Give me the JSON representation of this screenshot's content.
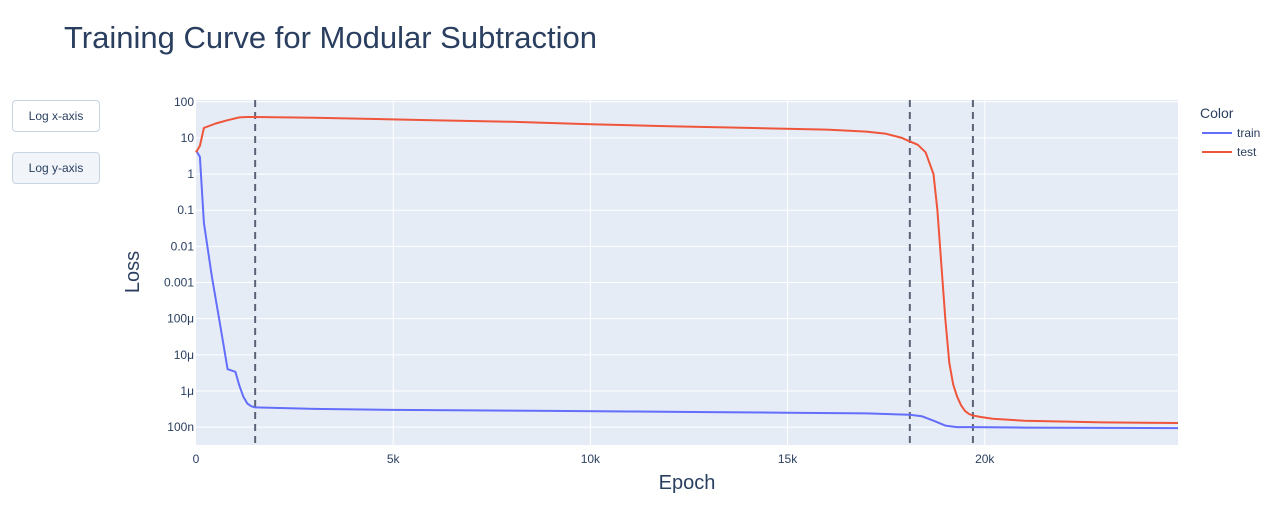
{
  "title": "Training Curve for Modular Subtraction",
  "buttons": {
    "log_x": "Log x-axis",
    "log_y": "Log y-axis"
  },
  "colors": {
    "plot_bg": "#e5ecf6",
    "grid": "#ffffff",
    "train": "#636efa",
    "test": "#ef553b",
    "vline": "#5b6377"
  },
  "chart_data": {
    "type": "line",
    "xlabel": "Epoch",
    "ylabel": "Loss",
    "xlim": [
      0,
      24900
    ],
    "ylim": [
      3.2e-08,
      112
    ],
    "yscale": "log",
    "grid": true,
    "x_ticks": [
      {
        "value": 0,
        "label": "0"
      },
      {
        "value": 5000,
        "label": "5k"
      },
      {
        "value": 10000,
        "label": "10k"
      },
      {
        "value": 15000,
        "label": "15k"
      },
      {
        "value": 20000,
        "label": "20k"
      }
    ],
    "y_ticks": [
      {
        "value": 100,
        "label": "100"
      },
      {
        "value": 10,
        "label": "10"
      },
      {
        "value": 1,
        "label": "1"
      },
      {
        "value": 0.1,
        "label": "0.1"
      },
      {
        "value": 0.01,
        "label": "0.01"
      },
      {
        "value": 0.001,
        "label": "0.001"
      },
      {
        "value": 0.0001,
        "label": "100μ"
      },
      {
        "value": 1e-05,
        "label": "10μ"
      },
      {
        "value": 1e-06,
        "label": "1μ"
      },
      {
        "value": 1e-07,
        "label": "100n"
      }
    ],
    "legend_title": "Color",
    "legend_position": "top-right",
    "vlines": [
      1500,
      18100,
      19700
    ],
    "series": [
      {
        "name": "train",
        "x": [
          0,
          100,
          200,
          400,
          600,
          800,
          1000,
          1100,
          1200,
          1300,
          1400,
          1500,
          3000,
          5000,
          7000,
          9000,
          11000,
          13000,
          15000,
          17000,
          18100,
          18400,
          18700,
          19000,
          19300,
          19700,
          21000,
          23000,
          24900
        ],
        "y": [
          4.5,
          3,
          0.045,
          0.0015,
          8e-05,
          4e-06,
          3.4e-06,
          1.4e-06,
          7e-07,
          4.5e-07,
          3.8e-07,
          3.5e-07,
          3.2e-07,
          3e-07,
          2.9e-07,
          2.8e-07,
          2.7e-07,
          2.6e-07,
          2.5e-07,
          2.4e-07,
          2.2e-07,
          2e-07,
          1.5e-07,
          1.1e-07,
          1e-07,
          1e-07,
          9.7e-08,
          9.5e-08,
          9.4e-08
        ]
      },
      {
        "name": "test",
        "x": [
          0,
          100,
          200,
          500,
          800,
          1100,
          1300,
          1500,
          3000,
          6000,
          8000,
          10000,
          12000,
          14000,
          16000,
          17000,
          17500,
          17900,
          18100,
          18300,
          18500,
          18700,
          18800,
          18900,
          19000,
          19100,
          19200,
          19300,
          19400,
          19500,
          19600,
          19700,
          19900,
          20200,
          21000,
          23000,
          24900
        ],
        "y": [
          4,
          6,
          19,
          25,
          31,
          37,
          38,
          38,
          36,
          31,
          28,
          24,
          21,
          19,
          17,
          15,
          13,
          10,
          8,
          6.5,
          4,
          1,
          0.1,
          0.003,
          0.0001,
          6e-06,
          1.5e-06,
          7e-07,
          4e-07,
          2.8e-07,
          2.3e-07,
          2.1e-07,
          1.9e-07,
          1.7e-07,
          1.5e-07,
          1.35e-07,
          1.3e-07
        ]
      }
    ]
  }
}
